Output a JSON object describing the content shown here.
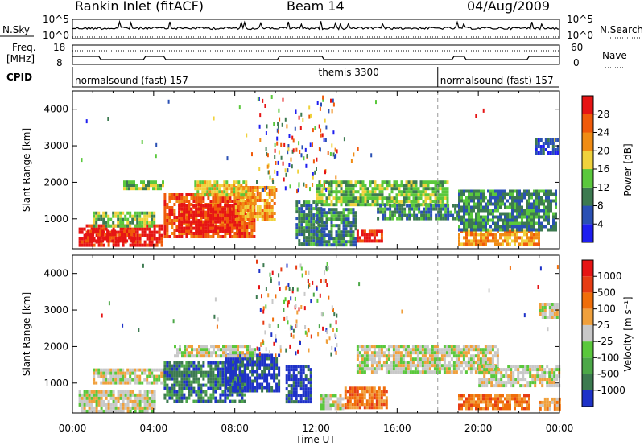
{
  "header": {
    "station": "Rankin Inlet (fitACF)",
    "beam": "Beam 14",
    "date": "04/Aug/2009"
  },
  "noise_panel": {
    "left_label": "N.Sky",
    "right_label": "N.Search",
    "left_top_tick": "10^5",
    "left_bottom_tick": "10^0",
    "right_top_tick": "10^5",
    "right_bottom_tick": "10^0"
  },
  "freq_panel": {
    "left_label_1": "Freq.",
    "left_label_2": "[MHz]",
    "left_ticks": [
      "18",
      "8"
    ],
    "right_label": "Nave",
    "right_ticks": [
      "60",
      "0"
    ]
  },
  "cpid_panel": {
    "label": "CPID",
    "segments": [
      {
        "name": "normalsound (fast) 157",
        "start_hour": 0.0,
        "end_hour": 12.0
      },
      {
        "name": "themis 3300",
        "start_hour": 12.0,
        "end_hour": 18.0
      },
      {
        "name": "normalsound (fast) 157",
        "start_hour": 18.0,
        "end_hour": 24.0
      }
    ]
  },
  "xaxis": {
    "label": "Time UT",
    "ticks": [
      "00:00",
      "04:00",
      "08:00",
      "12:00",
      "16:00",
      "20:00",
      "00:00"
    ]
  },
  "chart_data": [
    {
      "type": "heatmap",
      "title": "",
      "xlabel": "Time UT",
      "ylabel": "Slant Range [km]",
      "xlim": [
        0,
        24
      ],
      "ylim": [
        180,
        4500
      ],
      "yticks": [
        "1000",
        "2000",
        "3000",
        "4000"
      ],
      "colorbar": {
        "label": "Power [dB]",
        "ticks": [
          "4",
          "8",
          "12",
          "16",
          "20",
          "24",
          "28"
        ],
        "colors": [
          "#1e1ef0",
          "#2a50b4",
          "#3c7a50",
          "#5ac83c",
          "#f0d23c",
          "#f08c14",
          "#f05a0a",
          "#e61414"
        ]
      },
      "regions": [
        {
          "t0": 0.3,
          "t1": 4.4,
          "r0": 250,
          "r1": 850,
          "level": 7
        },
        {
          "t0": 0.6,
          "t1": 3.0,
          "r0": 400,
          "r1": 700,
          "level": 7
        },
        {
          "t0": 1.0,
          "t1": 4.0,
          "r0": 800,
          "r1": 1200,
          "level": 3
        },
        {
          "t0": 4.5,
          "t1": 9.0,
          "r0": 500,
          "r1": 1700,
          "level": 6
        },
        {
          "t0": 5.2,
          "t1": 8.2,
          "r0": 650,
          "r1": 1400,
          "level": 7
        },
        {
          "t0": 8.0,
          "t1": 10.0,
          "r0": 1000,
          "r1": 1900,
          "level": 5
        },
        {
          "t0": 6.0,
          "t1": 8.5,
          "r0": 1650,
          "r1": 2050,
          "level": 4
        },
        {
          "t0": 2.5,
          "t1": 4.5,
          "r0": 1800,
          "r1": 2050,
          "level": 3
        },
        {
          "t0": 11.0,
          "t1": 12.2,
          "r0": 300,
          "r1": 1500,
          "level": 2
        },
        {
          "t0": 12.0,
          "t1": 14.0,
          "r0": 300,
          "r1": 1300,
          "level": 2
        },
        {
          "t0": 14.0,
          "t1": 15.2,
          "r0": 350,
          "r1": 700,
          "level": 7
        },
        {
          "t0": 12.0,
          "t1": 18.5,
          "r0": 1400,
          "r1": 2050,
          "level": 3
        },
        {
          "t0": 15.0,
          "t1": 19.0,
          "r0": 1000,
          "r1": 1400,
          "level": 2
        },
        {
          "t0": 19.0,
          "t1": 23.0,
          "r0": 300,
          "r1": 700,
          "level": 5
        },
        {
          "t0": 19.0,
          "t1": 23.8,
          "r0": 700,
          "r1": 1800,
          "level": 2
        },
        {
          "t0": 22.8,
          "t1": 23.9,
          "r0": 2800,
          "r1": 3200,
          "level": 1
        }
      ]
    },
    {
      "type": "heatmap",
      "title": "",
      "xlabel": "Time UT",
      "ylabel": "Slant Range [km]",
      "xlim": [
        0,
        24
      ],
      "ylim": [
        180,
        4500
      ],
      "yticks": [
        "1000",
        "2000",
        "3000",
        "4000"
      ],
      "colorbar": {
        "label": "Velocity [m s⁻¹]",
        "ticks": [
          "1000",
          "500",
          "100",
          "25",
          "-25",
          "-100",
          "-500",
          "-1000"
        ],
        "colors": [
          "#1e32c8",
          "#3c7a50",
          "#4ca848",
          "#5ac83c",
          "#c8c8c8",
          "#f0a03c",
          "#f06e0a",
          "#e63c14",
          "#e61414"
        ]
      },
      "regions": [
        {
          "t0": 0.3,
          "t1": 4.0,
          "r0": 250,
          "r1": 800,
          "level": 4
        },
        {
          "t0": 1.0,
          "t1": 4.5,
          "r0": 1000,
          "r1": 1400,
          "level": 4
        },
        {
          "t0": 4.5,
          "t1": 8.5,
          "r0": 500,
          "r1": 1600,
          "level": 1
        },
        {
          "t0": 7.5,
          "t1": 10.2,
          "r0": 800,
          "r1": 1800,
          "level": 0
        },
        {
          "t0": 5.0,
          "t1": 9.0,
          "r0": 1700,
          "r1": 2050,
          "level": 4
        },
        {
          "t0": 10.5,
          "t1": 11.8,
          "r0": 500,
          "r1": 1500,
          "level": 0
        },
        {
          "t0": 12.2,
          "t1": 13.3,
          "r0": 300,
          "r1": 700,
          "level": 4
        },
        {
          "t0": 13.4,
          "t1": 15.5,
          "r0": 300,
          "r1": 900,
          "level": 6
        },
        {
          "t0": 14.0,
          "t1": 21.0,
          "r0": 1300,
          "r1": 2050,
          "level": 4
        },
        {
          "t0": 19.0,
          "t1": 22.5,
          "r0": 300,
          "r1": 700,
          "level": 6
        },
        {
          "t0": 20.0,
          "t1": 24.0,
          "r0": 900,
          "r1": 1500,
          "level": 4
        },
        {
          "t0": 23.0,
          "t1": 24.0,
          "r0": 250,
          "r1": 600,
          "level": 5
        },
        {
          "t0": 23.0,
          "t1": 23.9,
          "r0": 2800,
          "r1": 3200,
          "level": 4
        }
      ]
    }
  ]
}
